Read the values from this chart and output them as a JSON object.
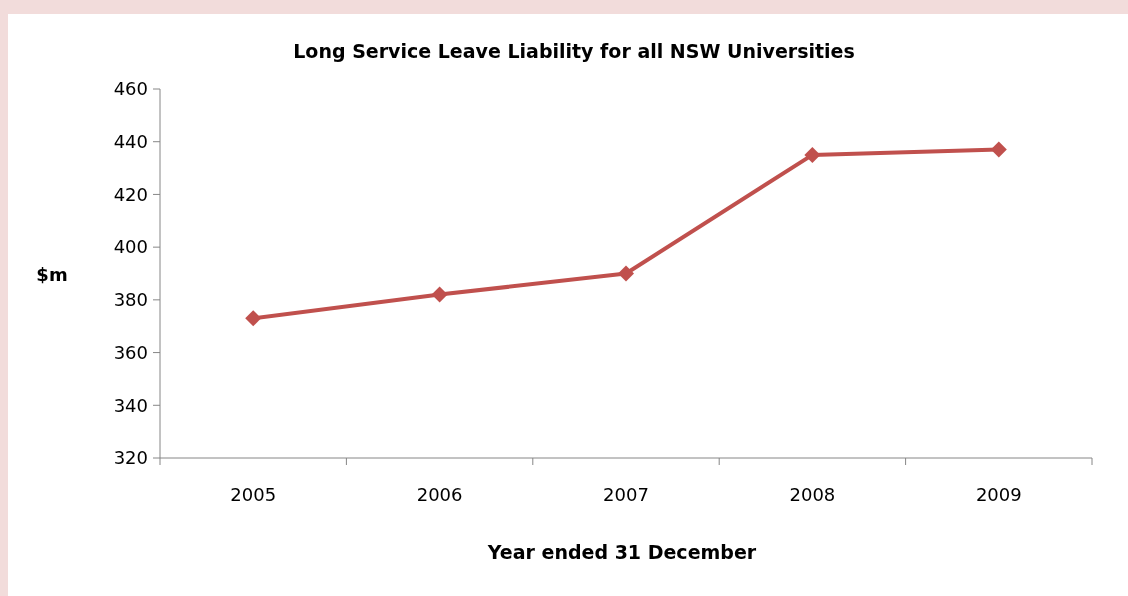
{
  "chart_data": {
    "type": "line",
    "title": "Long Service Leave Liability for all NSW Universities",
    "xlabel": "Year ended 31 December",
    "ylabel": "$m",
    "categories": [
      "2005",
      "2006",
      "2007",
      "2008",
      "2009"
    ],
    "series": [
      {
        "color": "#c0504d",
        "values": [
          373,
          382,
          390,
          435,
          437
        ]
      }
    ],
    "ylim": [
      320,
      460
    ],
    "yticks": [
      320,
      340,
      360,
      380,
      400,
      420,
      440,
      460
    ],
    "marker": "diamond",
    "line_style": "solid"
  }
}
